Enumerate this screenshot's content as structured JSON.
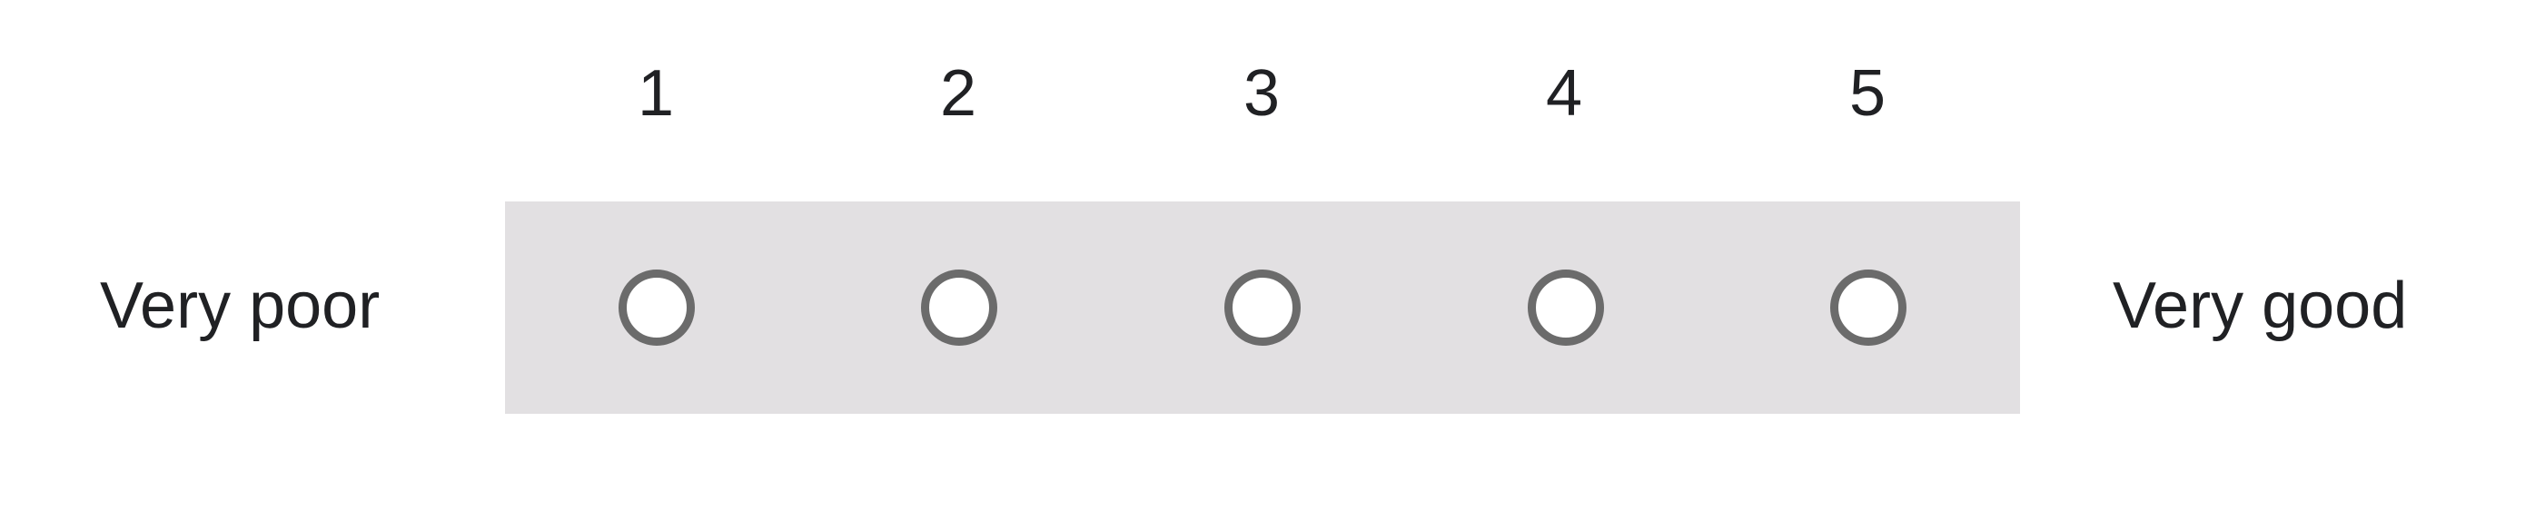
{
  "scale": {
    "numbers": [
      "1",
      "2",
      "3",
      "4",
      "5"
    ],
    "low_label": "Very poor",
    "high_label": "Very good",
    "selected": null
  },
  "colors": {
    "row_background": "#e2e0e2",
    "radio_border": "#6b6b6b",
    "text": "#202124"
  },
  "icons": {
    "radio": "radio-unchecked-icon"
  }
}
